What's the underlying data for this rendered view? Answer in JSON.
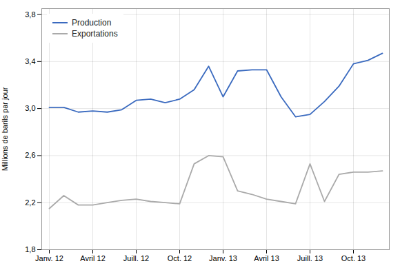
{
  "chart_data": {
    "type": "line",
    "categories": [
      "Janv. 12",
      null,
      null,
      "Avril 12",
      null,
      null,
      "Juill. 12",
      null,
      null,
      "Oct. 12",
      null,
      null,
      "Janv. 13",
      null,
      null,
      "Avril 13",
      null,
      null,
      "Juill. 13",
      null,
      null,
      "Oct. 13",
      null,
      null
    ],
    "series": [
      {
        "name": "Production",
        "color": "#3a6abf",
        "values": [
          3.01,
          3.01,
          2.97,
          2.98,
          2.97,
          2.99,
          3.07,
          3.08,
          3.05,
          3.08,
          3.16,
          3.36,
          3.1,
          3.32,
          3.33,
          3.33,
          3.1,
          2.93,
          2.95,
          3.06,
          3.19,
          3.38,
          3.41,
          3.47
        ]
      },
      {
        "name": "Exportations",
        "color": "#aaaaaa",
        "values": [
          2.15,
          2.26,
          2.18,
          2.18,
          2.2,
          2.22,
          2.23,
          2.21,
          2.2,
          2.19,
          2.53,
          2.6,
          2.59,
          2.3,
          2.27,
          2.23,
          2.21,
          2.19,
          2.53,
          2.21,
          2.44,
          2.46,
          2.46,
          2.47
        ]
      }
    ],
    "ylabel": "Millions de barils par jour",
    "ylim": [
      1.8,
      3.85
    ],
    "yticks": [
      {
        "value": 1.8,
        "label": "1,8"
      },
      {
        "value": 2.2,
        "label": "2,2"
      },
      {
        "value": 2.6,
        "label": "2,6"
      },
      {
        "value": 3.0,
        "label": "3,0"
      },
      {
        "value": 3.4,
        "label": "3,4"
      },
      {
        "value": 3.8,
        "label": "3,8"
      }
    ],
    "grid": true,
    "legend": "upper left"
  }
}
